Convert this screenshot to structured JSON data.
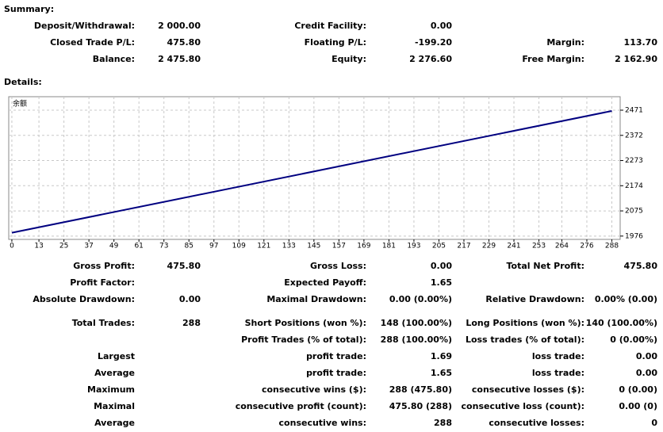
{
  "summary": {
    "title": "Summary:",
    "rows": [
      [
        {
          "label": "Deposit/Withdrawal:",
          "value": "2 000.00"
        },
        {
          "label": "Credit Facility:",
          "value": "0.00"
        },
        null
      ],
      [
        {
          "label": "Closed Trade P/L:",
          "value": "475.80"
        },
        {
          "label": "Floating P/L:",
          "value": "-199.20"
        },
        {
          "label": "Margin:",
          "value": "113.70"
        }
      ],
      [
        {
          "label": "Balance:",
          "value": "2 475.80"
        },
        {
          "label": "Equity:",
          "value": "2 276.60"
        },
        {
          "label": "Free Margin:",
          "value": "2 162.90"
        }
      ]
    ]
  },
  "details": {
    "title": "Details:",
    "rows": [
      [
        {
          "label": "Gross Profit:",
          "value": "475.80"
        },
        {
          "label": "Gross Loss:",
          "value": "0.00"
        },
        {
          "label": "Total Net Profit:",
          "value": "475.80"
        }
      ],
      [
        {
          "label": "Profit Factor:"
        },
        {
          "label": "Expected Payoff:",
          "value": "1.65"
        },
        null
      ],
      [
        {
          "label": "Absolute Drawdown:",
          "value": "0.00"
        },
        {
          "label": "Maximal Drawdown:",
          "value": "0.00 (0.00%)"
        },
        {
          "label": "Relative Drawdown:",
          "value": "0.00% (0.00)"
        }
      ],
      [
        {
          "label": "Total Trades:",
          "value": "288"
        },
        {
          "label": "Short Positions (won %):",
          "value": "148 (100.00%)"
        },
        {
          "label": "Long Positions (won %):",
          "value": "140 (100.00%)"
        }
      ],
      [
        null,
        {
          "label": "Profit Trades (% of total):",
          "value": "288 (100.00%)"
        },
        {
          "label": "Loss trades (% of total):",
          "value": "0 (0.00%)"
        }
      ],
      [
        {
          "label": "Largest"
        },
        {
          "label": "profit trade:",
          "value": "1.69"
        },
        {
          "label": "loss trade:",
          "value": "0.00"
        }
      ],
      [
        {
          "label": "Average"
        },
        {
          "label": "profit trade:",
          "value": "1.65"
        },
        {
          "label": "loss trade:",
          "value": "0.00"
        }
      ],
      [
        {
          "label": "Maximum"
        },
        {
          "label": "consecutive wins ($):",
          "value": "288 (475.80)"
        },
        {
          "label": "consecutive losses ($):",
          "value": "0 (0.00)"
        }
      ],
      [
        {
          "label": "Maximal"
        },
        {
          "label": "consecutive profit (count):",
          "value": "475.80 (288)"
        },
        {
          "label": "consecutive loss (count):",
          "value": "0.00 (0)"
        }
      ],
      [
        {
          "label": "Average"
        },
        {
          "label": "consecutive wins:",
          "value": "288"
        },
        {
          "label": "consecutive losses:",
          "value": "0"
        }
      ]
    ]
  },
  "chart_data": {
    "type": "line",
    "x": [
      0,
      288
    ],
    "series": [
      {
        "name": "余额",
        "color": "#000080",
        "values": [
          1989,
          2468
        ]
      }
    ],
    "xlim": [
      -1.5,
      292
    ],
    "ylim": [
      1963,
      2524
    ],
    "xticks": [
      0,
      13,
      25,
      37,
      49,
      61,
      73,
      85,
      97,
      109,
      121,
      133,
      145,
      157,
      169,
      181,
      193,
      205,
      217,
      229,
      241,
      253,
      264,
      276,
      288
    ],
    "yticks": [
      1976,
      2075,
      2174,
      2273,
      2372,
      2471
    ],
    "grid": true
  }
}
